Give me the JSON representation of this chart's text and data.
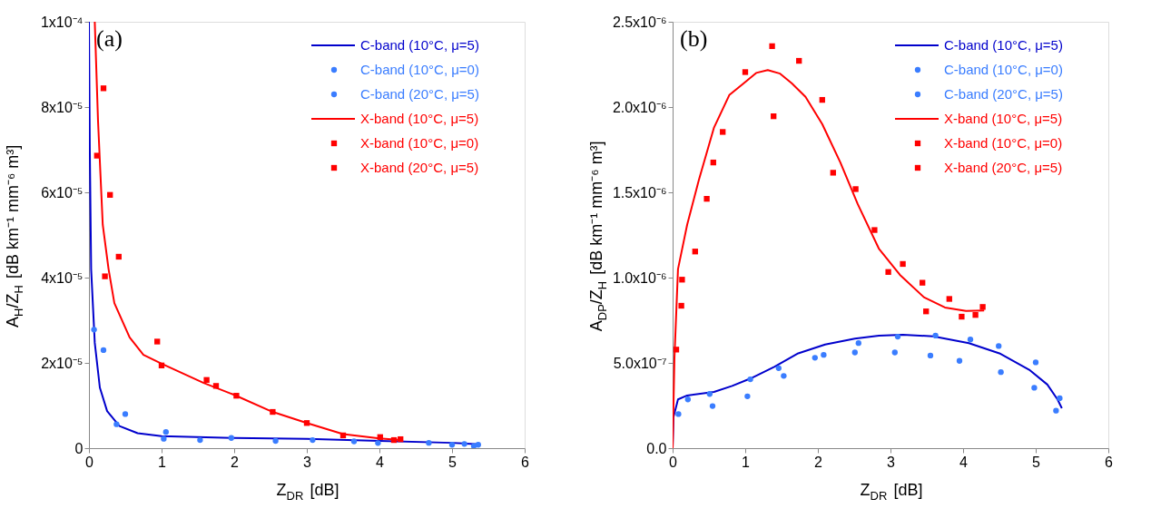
{
  "chart_data": [
    {
      "type": "scatter",
      "xlabel": "Z$_{DR}$ [dB]",
      "ylabel": "A$_{H}$/Z$_{H}$ [dB km⁻¹ mm⁻⁶ m³]",
      "annotations": [
        "(a)"
      ],
      "legend": "top right",
      "grid": false,
      "xlim": [
        0,
        6
      ],
      "xticks": [
        0,
        1,
        2,
        3,
        4,
        5,
        6
      ],
      "ylim": [
        0,
        0.0001
      ],
      "yticks": [
        0,
        {
          "value": 2e-05,
          "label": "2x10⁻⁵"
        },
        {
          "value": 4e-05,
          "label": "4x10⁻⁵"
        },
        {
          "value": 6e-05,
          "label": "6x10⁻⁵"
        },
        {
          "value": 8e-05,
          "label": "8x10⁻⁵"
        },
        {
          "value": 0.0001,
          "label": "1x10⁻⁴"
        }
      ],
      "series": [
        {
          "name": "C-band (10°C, μ=5)",
          "type": "line",
          "color": "#0000cc",
          "x": [
            0,
            0.012,
            0.03,
            0.08,
            0.15,
            0.25,
            0.42,
            0.67,
            1.0,
            2.0,
            3.0,
            4.0,
            5.0,
            5.38
          ],
          "values": [
            0.0001,
            6.98e-05,
            4.2e-05,
            2.47e-05,
            1.42e-05,
            8.7e-06,
            5.2e-06,
            3.5e-06,
            2.8e-06,
            2.4e-06,
            2.2e-06,
            1.7e-06,
            1.25e-06,
            9e-07
          ]
        },
        {
          "name": "C-band (10°C, μ=0)",
          "marker": "circle",
          "color": "#3a7dff",
          "x": [
            0.2,
            0.5,
            1.06,
            1.96,
            3.08,
            3.98,
            5.0,
            5.3
          ],
          "values": [
            2.3e-05,
            8e-06,
            3.8e-06,
            2.4e-06,
            1.9e-06,
            1.2e-06,
            8e-07,
            5e-07
          ]
        },
        {
          "name": "C-band (20°C, μ=5)",
          "marker": "circle",
          "color": "#3a7dff",
          "x": [
            0.07,
            0.38,
            1.03,
            1.53,
            2.57,
            3.65,
            4.68,
            5.17,
            5.36
          ],
          "values": [
            2.78e-05,
            5.6e-06,
            2.2e-06,
            1.9e-06,
            1.7e-06,
            1.6e-06,
            1.25e-06,
            1e-06,
            8e-07
          ]
        },
        {
          "name": "X-band (10°C, μ=5)",
          "type": "line",
          "color": "#ff0000",
          "x": [
            0.08,
            0.125,
            0.19,
            0.27,
            0.35,
            0.56,
            0.75,
            1.0,
            1.58,
            2.0,
            2.53,
            3.0,
            3.5,
            4.0,
            4.29
          ],
          "values": [
            0.0001,
            7.67e-05,
            5.24e-05,
            4.2e-05,
            3.4e-05,
            2.6e-05,
            2.19e-05,
            1.98e-05,
            1.53e-05,
            1.25e-05,
            8.5e-06,
            5.9e-06,
            3.3e-06,
            2.3e-06,
            1.9e-06
          ]
        },
        {
          "name": "X-band (10°C, μ=0)",
          "marker": "square",
          "color": "#ff0000",
          "x": [
            0.2,
            0.29,
            0.41,
            0.94,
            1.62,
            2.03,
            3.0,
            4.01,
            4.29
          ],
          "values": [
            8.44e-05,
            5.94e-05,
            4.49e-05,
            2.5e-05,
            1.6e-05,
            1.23e-05,
            5.9e-06,
            2.6e-06,
            2.1e-06
          ]
        },
        {
          "name": "X-band (20°C, μ=5)",
          "marker": "square",
          "color": "#ff0000",
          "x": [
            0.11,
            0.22,
            1.0,
            1.75,
            2.53,
            3.5,
            4.2
          ],
          "values": [
            6.86e-05,
            4.03e-05,
            1.94e-05,
            1.46e-05,
            8.5e-06,
            3e-06,
            1.9e-06
          ]
        }
      ]
    },
    {
      "type": "scatter",
      "xlabel": "Z$_{DR}$ [dB]",
      "ylabel": "A$_{DP}$/Z$_{H}$ [dB km⁻¹ mm⁻⁶ m³]",
      "annotations": [
        "(b)"
      ],
      "legend": "top right",
      "grid": false,
      "xlim": [
        0,
        6
      ],
      "xticks": [
        0,
        1,
        2,
        3,
        4,
        5,
        6
      ],
      "ylim": [
        0,
        2.5e-06
      ],
      "yticks": [
        {
          "value": 0,
          "label": "0.0"
        },
        {
          "value": 5e-07,
          "label": "5.0x10⁻⁷"
        },
        {
          "value": 1e-06,
          "label": "1.0x10⁻⁶"
        },
        {
          "value": 1.5e-06,
          "label": "1.5x10⁻⁶"
        },
        {
          "value": 2e-06,
          "label": "2.0x10⁻⁶"
        },
        {
          "value": 2.5e-06,
          "label": "2.5x10⁻⁶"
        }
      ],
      "series": [
        {
          "name": "C-band (10°C, μ=5)",
          "type": "line",
          "color": "#0000cc",
          "x": [
            0,
            0.012,
            0.074,
            0.2,
            0.57,
            0.82,
            1.07,
            1.4,
            1.73,
            2.1,
            2.51,
            2.84,
            3.17,
            3.59,
            4.08,
            4.5,
            4.91,
            5.16,
            5.3,
            5.36
          ],
          "values": [
            0,
            1.82e-07,
            2.86e-07,
            3.09e-07,
            3.3e-07,
            3.65e-07,
            4.08e-07,
            4.77e-07,
            5.56e-07,
            6.08e-07,
            6.42e-07,
            6.6e-07,
            6.65e-07,
            6.56e-07,
            6.16e-07,
            5.56e-07,
            4.6e-07,
            3.73e-07,
            2.86e-07,
            2.34e-07
          ]
        },
        {
          "name": "C-band (10°C, μ=0)",
          "marker": "circle",
          "color": "#3a7dff",
          "x": [
            0.21,
            0.51,
            1.07,
            1.46,
            1.96,
            2.51,
            3.06,
            3.55,
            3.95,
            4.52,
            4.98,
            5.28
          ],
          "values": [
            2.86e-07,
            3.18e-07,
            4.04e-07,
            4.69e-07,
            5.3e-07,
            5.61e-07,
            5.61e-07,
            5.43e-07,
            5.12e-07,
            4.46e-07,
            3.54e-07,
            2.2e-07
          ]
        },
        {
          "name": "C-band (20°C, μ=5)",
          "marker": "circle",
          "color": "#3a7dff",
          "x": [
            0.08,
            0.55,
            1.03,
            1.53,
            2.08,
            2.56,
            3.1,
            3.62,
            4.1,
            4.49,
            5.0,
            5.33
          ],
          "values": [
            2e-07,
            2.47e-07,
            3.04e-07,
            4.24e-07,
            5.47e-07,
            6.16e-07,
            6.54e-07,
            6.6e-07,
            6.37e-07,
            5.99e-07,
            5.03e-07,
            2.93e-07
          ]
        },
        {
          "name": "X-band (10°C, μ=5)",
          "type": "line",
          "color": "#ff0000",
          "x": [
            0,
            0.025,
            0.074,
            0.2,
            0.36,
            0.57,
            0.78,
            0.98,
            1.15,
            1.31,
            1.48,
            1.64,
            1.83,
            2.06,
            2.31,
            2.55,
            2.84,
            3.13,
            3.46,
            3.75,
            4.04,
            4.29
          ],
          "values": [
            0,
            5.3e-07,
            1.05e-06,
            1.31e-06,
            1.57e-06,
            1.88e-06,
            2.07e-06,
            2.14e-06,
            2.2e-06,
            2.217e-06,
            2.196e-06,
            2.14e-06,
            2.06e-06,
            1.9e-06,
            1.675e-06,
            1.43e-06,
            1.17e-06,
            1.016e-06,
            8.85e-07,
            8.25e-07,
            8.04e-07,
            8.07e-07
          ]
        },
        {
          "name": "X-band (10°C, μ=0)",
          "marker": "square",
          "color": "#ff0000",
          "x": [
            0.13,
            0.56,
            1.39,
            2.21,
            2.78,
            3.17,
            3.44,
            3.81,
            4.27
          ],
          "values": [
            9.88e-07,
            1.675e-06,
            1.946e-06,
            1.615e-06,
            1.279e-06,
            1.08e-06,
            9.7e-07,
            8.75e-07,
            8.28e-07
          ]
        },
        {
          "name": "X-band (20°C, μ=5)",
          "marker": "square",
          "color": "#ff0000",
          "x": [
            0.05,
            0.12,
            0.31,
            0.47,
            0.69,
            1.0,
            1.37,
            1.74,
            2.06,
            2.52,
            2.97,
            3.49,
            3.98,
            4.17
          ],
          "values": [
            5.78e-07,
            8.35e-07,
            1.153e-06,
            1.462e-06,
            1.854e-06,
            2.205e-06,
            2.357e-06,
            2.271e-06,
            2.042e-06,
            1.519e-06,
            1.033e-06,
            8.02e-07,
            7.71e-07,
            7.81e-07
          ]
        }
      ]
    }
  ]
}
